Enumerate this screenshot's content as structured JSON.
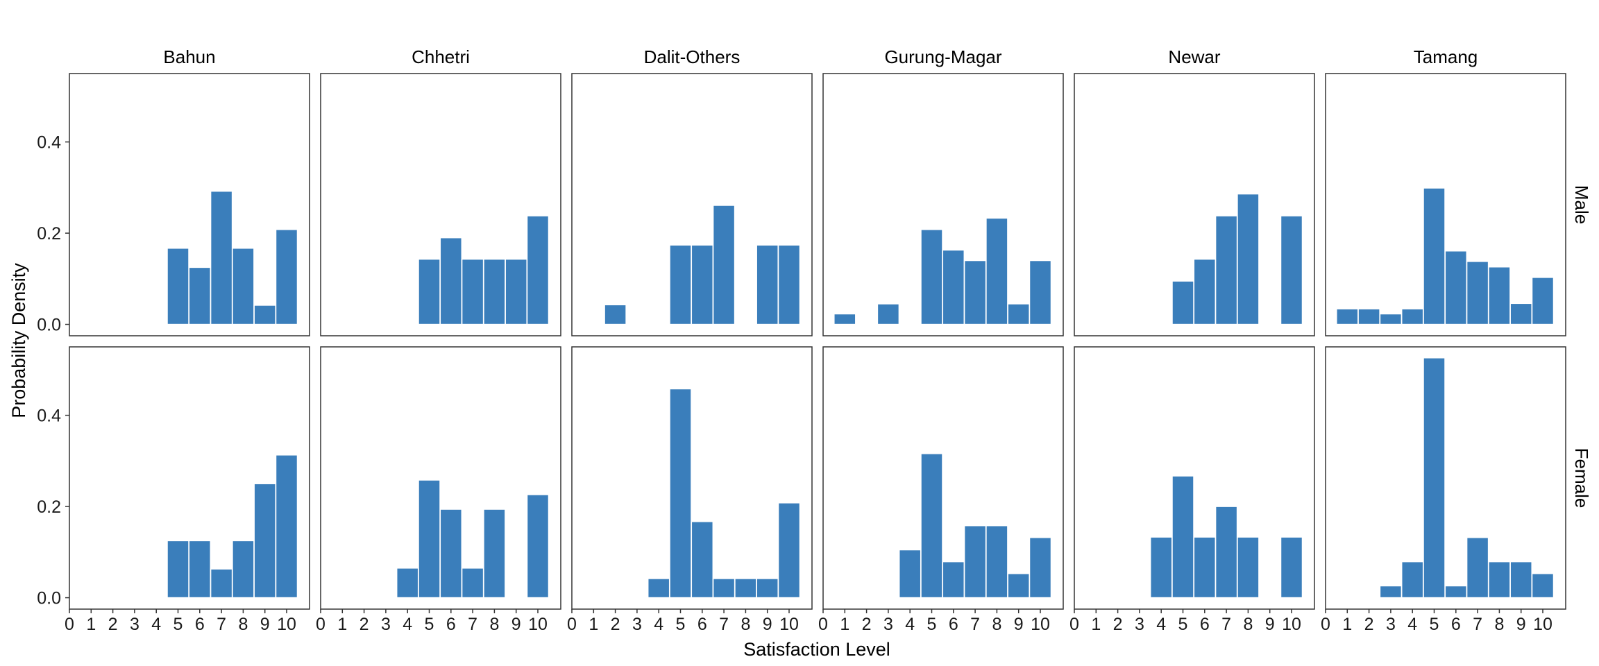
{
  "chart_data": {
    "type": "bar",
    "xlabel": "Satisfaction Level",
    "ylabel": "Probability  Density",
    "xlim": [
      0,
      10.5
    ],
    "ylim": [
      -0.025,
      0.55
    ],
    "x_ticks": [
      0,
      1,
      2,
      3,
      4,
      5,
      6,
      7,
      8,
      9,
      10
    ],
    "y_ticks": [
      0.0,
      0.2,
      0.4
    ],
    "y_tick_labels": [
      "0.0",
      "0.2",
      "0.4"
    ],
    "columns": [
      "Bahun",
      "Chhetri",
      "Dalit-Others",
      "Gurung-Magar",
      "Newar",
      "Tamang"
    ],
    "rows": [
      "Male",
      "Female"
    ],
    "bar_color": "#3A7EBB",
    "grid": false,
    "panels": [
      {
        "row": "Male",
        "column": "Bahun",
        "x": [
          5,
          6,
          7,
          8,
          9,
          10
        ],
        "values": [
          0.167,
          0.125,
          0.292,
          0.167,
          0.042,
          0.208
        ]
      },
      {
        "row": "Male",
        "column": "Chhetri",
        "x": [
          5,
          6,
          7,
          8,
          9,
          10
        ],
        "values": [
          0.143,
          0.19,
          0.143,
          0.143,
          0.143,
          0.238
        ]
      },
      {
        "row": "Male",
        "column": "Dalit-Others",
        "x": [
          2,
          5,
          6,
          7,
          9,
          10
        ],
        "values": [
          0.043,
          0.174,
          0.174,
          0.261,
          0.174,
          0.174
        ]
      },
      {
        "row": "Male",
        "column": "Gurung-Magar",
        "x": [
          1,
          3,
          5,
          6,
          7,
          8,
          9,
          10
        ],
        "values": [
          0.023,
          0.045,
          0.208,
          0.163,
          0.14,
          0.233,
          0.045,
          0.14
        ]
      },
      {
        "row": "Male",
        "column": "Newar",
        "x": [
          5,
          6,
          7,
          8,
          10
        ],
        "values": [
          0.095,
          0.143,
          0.238,
          0.286,
          0.238
        ]
      },
      {
        "row": "Male",
        "column": "Tamang",
        "x": [
          1,
          2,
          3,
          4,
          5,
          6,
          7,
          8,
          9,
          10
        ],
        "values": [
          0.034,
          0.034,
          0.023,
          0.034,
          0.299,
          0.161,
          0.138,
          0.126,
          0.046,
          0.103
        ]
      },
      {
        "row": "Female",
        "column": "Bahun",
        "x": [
          5,
          6,
          7,
          8,
          9,
          10
        ],
        "values": [
          0.125,
          0.125,
          0.063,
          0.125,
          0.25,
          0.313
        ]
      },
      {
        "row": "Female",
        "column": "Chhetri",
        "x": [
          4,
          5,
          6,
          7,
          8,
          10
        ],
        "values": [
          0.065,
          0.258,
          0.194,
          0.065,
          0.194,
          0.226
        ]
      },
      {
        "row": "Female",
        "column": "Dalit-Others",
        "x": [
          4,
          5,
          6,
          7,
          8,
          9,
          10
        ],
        "values": [
          0.042,
          0.458,
          0.167,
          0.042,
          0.042,
          0.042,
          0.208
        ]
      },
      {
        "row": "Female",
        "column": "Gurung-Magar",
        "x": [
          4,
          5,
          6,
          7,
          8,
          9,
          10
        ],
        "values": [
          0.105,
          0.316,
          0.079,
          0.158,
          0.158,
          0.053,
          0.132
        ]
      },
      {
        "row": "Female",
        "column": "Newar",
        "x": [
          4,
          5,
          6,
          7,
          8,
          10
        ],
        "values": [
          0.133,
          0.267,
          0.133,
          0.2,
          0.133,
          0.133
        ]
      },
      {
        "row": "Female",
        "column": "Tamang",
        "x": [
          3,
          4,
          5,
          6,
          7,
          8,
          9,
          10
        ],
        "values": [
          0.026,
          0.079,
          0.526,
          0.026,
          0.132,
          0.079,
          0.079,
          0.053
        ]
      }
    ]
  }
}
